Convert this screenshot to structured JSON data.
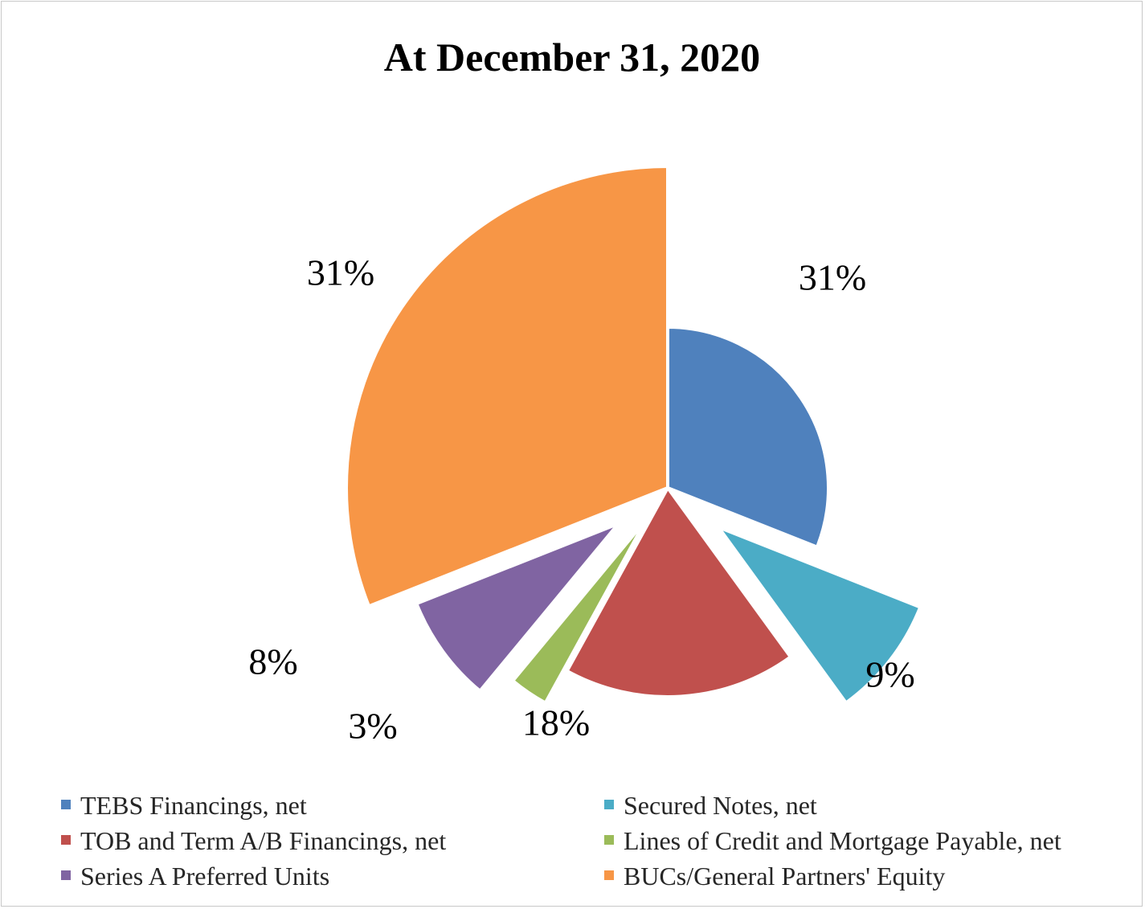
{
  "chart_data": {
    "type": "pie",
    "title": "At December 31, 2020",
    "slices": [
      {
        "name": "TEBS Financings, net",
        "value": 31,
        "label": "31%",
        "color": "#4F81BD"
      },
      {
        "name": "Secured Notes, net",
        "value": 9,
        "label": "9%",
        "color": "#4BACC6"
      },
      {
        "name": "TOB and Term A/B Financings, net",
        "value": 18,
        "label": "18%",
        "color": "#C0504D"
      },
      {
        "name": "Lines of Credit and Mortgage Payable, net",
        "value": 3,
        "label": "3%",
        "color": "#9BBB59"
      },
      {
        "name": "Series A Preferred Units",
        "value": 8,
        "label": "8%",
        "color": "#8064A2"
      },
      {
        "name": "BUCs/General Partners' Equity",
        "value": 31,
        "label": "31%",
        "color": "#F79646"
      }
    ],
    "legend_position": "bottom"
  }
}
